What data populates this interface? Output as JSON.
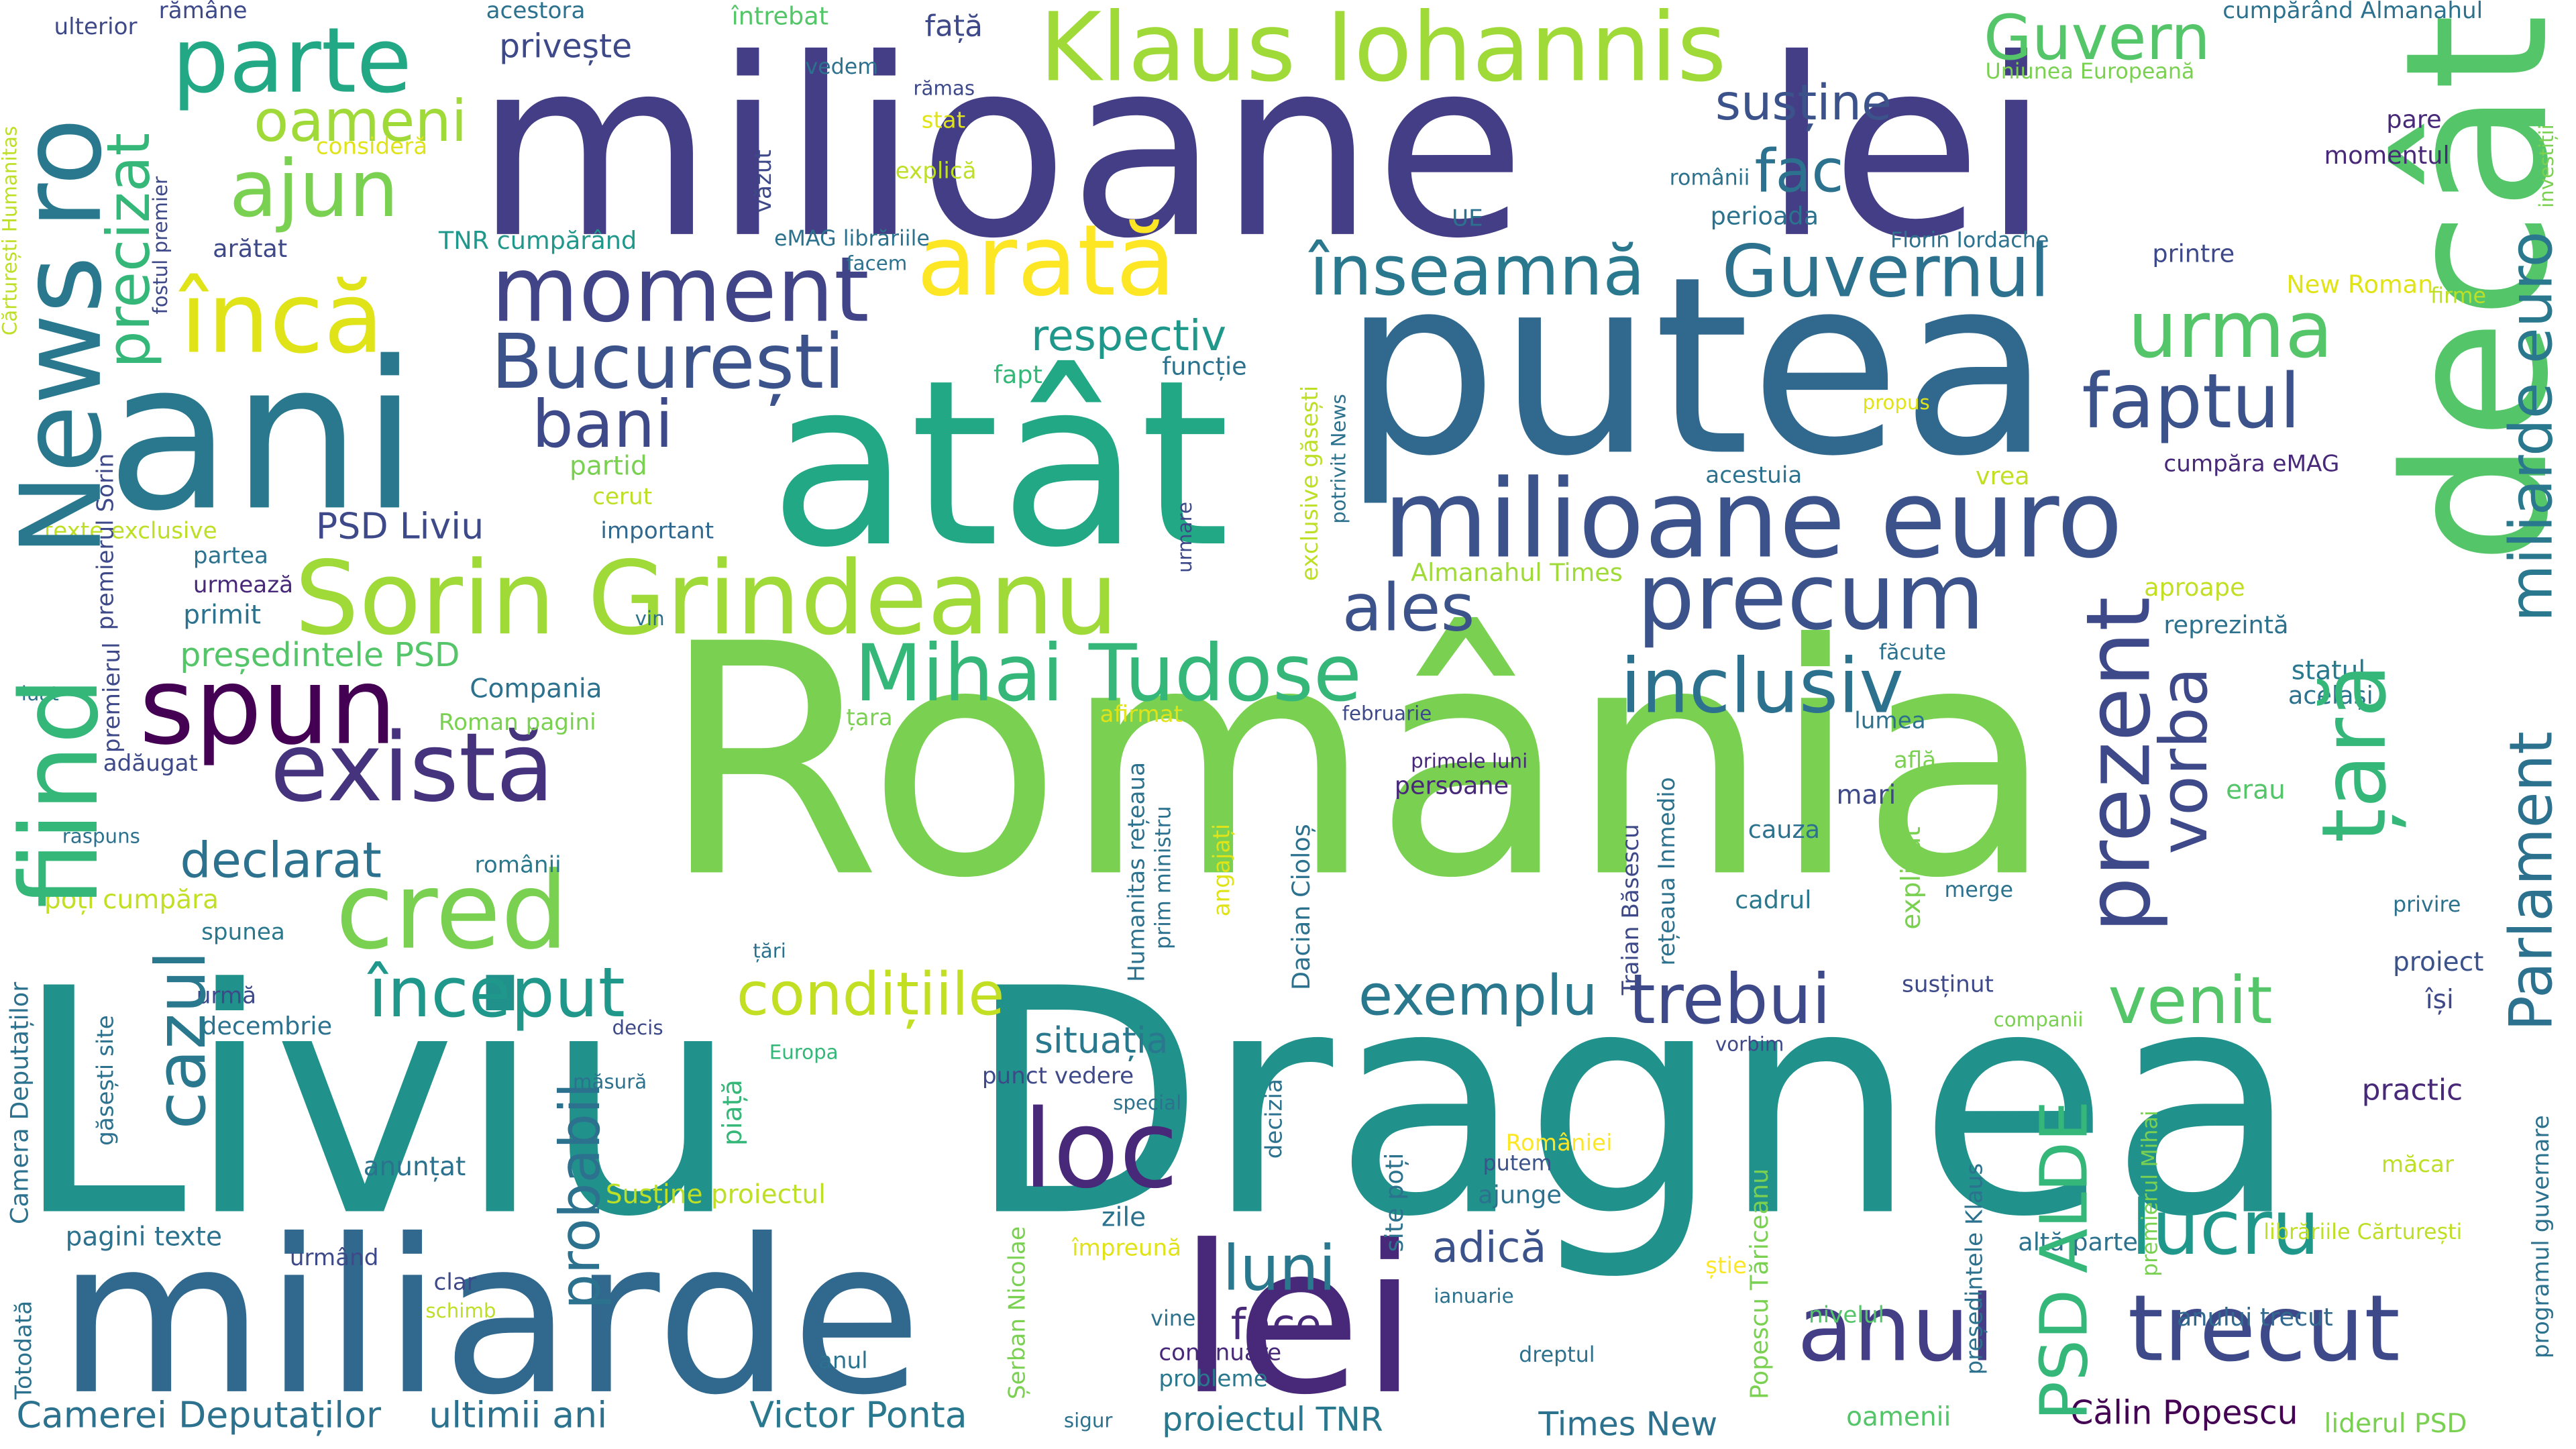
{
  "words": [
    {
      "text": "România",
      "color": "#7ad151"
    },
    {
      "text": "Liviu",
      "color": "#21918c"
    },
    {
      "text": "Dragnea",
      "color": "#21918c"
    },
    {
      "text": "milioane",
      "color": "#433e85"
    },
    {
      "text": "lei",
      "color": "#433e85"
    },
    {
      "text": "putea",
      "color": "#31688e"
    },
    {
      "text": "atât",
      "color": "#22a884"
    },
    {
      "text": "ani",
      "color": "#2a788e"
    },
    {
      "text": "decât",
      "color": "#54c568"
    },
    {
      "text": "miliarde",
      "color": "#31688e"
    },
    {
      "text": "lei",
      "color": "#482878"
    },
    {
      "text": "Klaus Iohannis",
      "color": "#a0da39"
    },
    {
      "text": "Guvern",
      "color": "#54c568"
    },
    {
      "text": "parte",
      "color": "#22a884"
    },
    {
      "text": "oameni",
      "color": "#a0da39"
    },
    {
      "text": "ajun",
      "color": "#7ad151"
    },
    {
      "text": "arată",
      "color": "#fde725"
    },
    {
      "text": "moment",
      "color": "#414487"
    },
    {
      "text": "încă",
      "color": "#dfe318"
    },
    {
      "text": "București",
      "color": "#3b528b"
    },
    {
      "text": "înseamnă",
      "color": "#2a788e"
    },
    {
      "text": "Guvernul",
      "color": "#2c728e"
    },
    {
      "text": "susține",
      "color": "#3b528b"
    },
    {
      "text": "fac",
      "color": "#2c728e"
    },
    {
      "text": "urma",
      "color": "#54c568"
    },
    {
      "text": "faptul",
      "color": "#3b528b"
    },
    {
      "text": "respectiv",
      "color": "#1f988b"
    },
    {
      "text": "bani",
      "color": "#3e4989"
    },
    {
      "text": "milioane euro",
      "color": "#3b528b"
    },
    {
      "text": "Sorin Grindeanu",
      "color": "#a0da39"
    },
    {
      "text": "precum",
      "color": "#3b528b"
    },
    {
      "text": "ales",
      "color": "#3b528b"
    },
    {
      "text": "Mihai Tudose",
      "color": "#35b779"
    },
    {
      "text": "inclusiv",
      "color": "#2c728e"
    },
    {
      "text": "spun",
      "color": "#440154"
    },
    {
      "text": "există",
      "color": "#46337e"
    },
    {
      "text": "cred",
      "color": "#7ad151"
    },
    {
      "text": "declarat",
      "color": "#2c728e"
    },
    {
      "text": "început",
      "color": "#1f988b"
    },
    {
      "text": "condițiile",
      "color": "#c2df23"
    },
    {
      "text": "exemplu",
      "color": "#2a788e"
    },
    {
      "text": "trebui",
      "color": "#3e4989"
    },
    {
      "text": "venit",
      "color": "#54c568"
    },
    {
      "text": "loc",
      "color": "#482878"
    },
    {
      "text": "situația",
      "color": "#2a788e"
    },
    {
      "text": "luni",
      "color": "#2a788e"
    },
    {
      "text": "anul",
      "color": "#433e85"
    },
    {
      "text": "trecut",
      "color": "#3e4989"
    },
    {
      "text": "lucru",
      "color": "#1f988b"
    },
    {
      "text": "adică",
      "color": "#3b528b"
    },
    {
      "text": "face",
      "color": "#482878"
    },
    {
      "text": "Victor Ponta",
      "color": "#2a788e"
    },
    {
      "text": "ultimii ani",
      "color": "#2c728e"
    },
    {
      "text": "Camerei Deputaților",
      "color": "#2c728e"
    },
    {
      "text": "Times New",
      "color": "#2c728e"
    },
    {
      "text": "Călin Popescu",
      "color": "#440154"
    },
    {
      "text": "proiectul TNR",
      "color": "#2a788e"
    },
    {
      "text": "PSD Liviu",
      "color": "#3e4989"
    },
    {
      "text": "partid",
      "color": "#7ad151"
    },
    {
      "text": "cerut",
      "color": "#bddf26"
    },
    {
      "text": "important",
      "color": "#31688e"
    },
    {
      "text": "texte exclusive",
      "color": "#bddf26"
    },
    {
      "text": "partea",
      "color": "#2c728e"
    },
    {
      "text": "urmează",
      "color": "#482878"
    },
    {
      "text": "primit",
      "color": "#2c728e"
    },
    {
      "text": "președintele PSD",
      "color": "#54c568"
    },
    {
      "text": "Compania",
      "color": "#2c728e"
    },
    {
      "text": "Roman pagini",
      "color": "#7ad151"
    },
    {
      "text": "adăugat",
      "color": "#3e4989"
    },
    {
      "text": "românii",
      "color": "#2a788e"
    },
    {
      "text": "poți cumpăra",
      "color": "#c2df23"
    },
    {
      "text": "spunea",
      "color": "#2a788e"
    },
    {
      "text": "urmă",
      "color": "#3e4989"
    },
    {
      "text": "decembrie",
      "color": "#2c728e"
    },
    {
      "text": "anunțat",
      "color": "#2c728e"
    },
    {
      "text": "pagini texte",
      "color": "#2c728e"
    },
    {
      "text": "urmând",
      "color": "#3e4989"
    },
    {
      "text": "clar",
      "color": "#3e4989"
    },
    {
      "text": "schimb",
      "color": "#bddf26"
    },
    {
      "text": "anul",
      "color": "#2c728e"
    },
    {
      "text": "Susține proiectul",
      "color": "#bddf26"
    },
    {
      "text": "zile",
      "color": "#2c728e"
    },
    {
      "text": "împreună",
      "color": "#dfe318"
    },
    {
      "text": "continuare",
      "color": "#482878"
    },
    {
      "text": "probleme",
      "color": "#2a788e"
    },
    {
      "text": "vine",
      "color": "#2c728e"
    },
    {
      "text": "ianuarie",
      "color": "#2c728e"
    },
    {
      "text": "putem",
      "color": "#3b528b"
    },
    {
      "text": "ajunge",
      "color": "#2c728e"
    },
    {
      "text": "dreptul",
      "color": "#2c728e"
    },
    {
      "text": "oamenii",
      "color": "#54c568"
    },
    {
      "text": "sigur",
      "color": "#2c728e"
    },
    {
      "text": "liderul PSD",
      "color": "#7ad151"
    },
    {
      "text": "anului trecut",
      "color": "#31688e"
    },
    {
      "text": "altă parte",
      "color": "#2c728e"
    },
    {
      "text": "nivelul",
      "color": "#54c568"
    },
    {
      "text": "știe",
      "color": "#fde725"
    },
    {
      "text": "librăriile Cărturești",
      "color": "#bddf26"
    },
    {
      "text": "măcar",
      "color": "#bddf26"
    },
    {
      "text": "practic",
      "color": "#482878"
    },
    {
      "text": "companii",
      "color": "#7ad151"
    },
    {
      "text": "susținut",
      "color": "#3e4989"
    },
    {
      "text": "României",
      "color": "#fde725"
    },
    {
      "text": "decis",
      "color": "#3e4989"
    },
    {
      "text": "Europa",
      "color": "#35b779"
    },
    {
      "text": "vorbim",
      "color": "#3e4989"
    },
    {
      "text": "special",
      "color": "#2c728e"
    },
    {
      "text": "punct vedere",
      "color": "#3e4989"
    },
    {
      "text": "afirmat",
      "color": "#dfe318"
    },
    {
      "text": "februarie",
      "color": "#3e4989"
    },
    {
      "text": "țara",
      "color": "#7ad151"
    },
    {
      "text": "lumea",
      "color": "#2c728e"
    },
    {
      "text": "persoane",
      "color": "#482878"
    },
    {
      "text": "primele luni",
      "color": "#482878"
    },
    {
      "text": "mari",
      "color": "#3e4989"
    },
    {
      "text": "află",
      "color": "#7ad151"
    },
    {
      "text": "erau",
      "color": "#54c568"
    },
    {
      "text": "cauza",
      "color": "#2c728e"
    },
    {
      "text": "cadrul",
      "color": "#2a788e"
    },
    {
      "text": "merge",
      "color": "#2c728e"
    },
    {
      "text": "privire",
      "color": "#2c728e"
    },
    {
      "text": "proiect",
      "color": "#3b528b"
    },
    {
      "text": "își",
      "color": "#3e4989"
    },
    {
      "text": "statul",
      "color": "#2a788e"
    },
    {
      "text": "același",
      "color": "#2c728e"
    },
    {
      "text": "reprezintă",
      "color": "#2c728e"
    },
    {
      "text": "aproape",
      "color": "#c2df23"
    },
    {
      "text": "făcute",
      "color": "#2c728e"
    },
    {
      "text": "Almanahul Times",
      "color": "#a0da39"
    },
    {
      "text": "acestuia",
      "color": "#2c728e"
    },
    {
      "text": "vrea",
      "color": "#c2df23"
    },
    {
      "text": "cumpăra eMAG",
      "color": "#482878"
    },
    {
      "text": "propus",
      "color": "#dfe318"
    },
    {
      "text": "firme",
      "color": "#bddf26"
    },
    {
      "text": "New Roman",
      "color": "#dfe318"
    },
    {
      "text": "printre",
      "color": "#3e4989"
    },
    {
      "text": "Florin Iordache",
      "color": "#2c728e"
    },
    {
      "text": "perioada",
      "color": "#2c728e"
    },
    {
      "text": "românii",
      "color": "#2c728e"
    },
    {
      "text": "momentul",
      "color": "#482878"
    },
    {
      "text": "pare",
      "color": "#482878"
    },
    {
      "text": "cumpărând Almanahul",
      "color": "#2c728e"
    },
    {
      "text": "Uniunea Europeană",
      "color": "#7ad151"
    },
    {
      "text": "UE",
      "color": "#2c728e"
    },
    {
      "text": "eMAG librăriile",
      "color": "#2c728e"
    },
    {
      "text": "facem",
      "color": "#2c728e"
    },
    {
      "text": "explică",
      "color": "#bddf26"
    },
    {
      "text": "rămas",
      "color": "#3e4989"
    },
    {
      "text": "stat",
      "color": "#dfe318"
    },
    {
      "text": "vedem",
      "color": "#2c728e"
    },
    {
      "text": "întrebat",
      "color": "#54c568"
    },
    {
      "text": "față",
      "color": "#3e4989"
    },
    {
      "text": "privește",
      "color": "#3e4989"
    },
    {
      "text": "acestora",
      "color": "#2c728e"
    },
    {
      "text": "rămâne",
      "color": "#3e4989"
    },
    {
      "text": "ulterior",
      "color": "#3e4989"
    },
    {
      "text": "consideră",
      "color": "#dfe318"
    },
    {
      "text": "arătat",
      "color": "#3e4989"
    },
    {
      "text": "TNR cumpărând",
      "color": "#1f988b"
    },
    {
      "text": "fapt",
      "color": "#35b779"
    },
    {
      "text": "funcție",
      "color": "#2c728e"
    },
    {
      "text": "vin",
      "color": "#2c728e"
    },
    {
      "text": "luat",
      "color": "#2c728e"
    },
    {
      "text": "răspuns",
      "color": "#2c728e"
    },
    {
      "text": "măsură",
      "color": "#2c728e"
    },
    {
      "text": "țări",
      "color": "#2c728e"
    },
    {
      "text": "decizia",
      "color": "#2c728e"
    },
    {
      "text": "Totodată",
      "color": "#2c728e"
    },
    {
      "text": "News",
      "color": "#2a788e"
    },
    {
      "text": "ro",
      "color": "#2a788e"
    },
    {
      "text": "precizat",
      "color": "#35b779"
    },
    {
      "text": "fiind",
      "color": "#35b779"
    },
    {
      "text": "cazul",
      "color": "#2a788e"
    },
    {
      "text": "țară",
      "color": "#35b779"
    },
    {
      "text": "Parlament",
      "color": "#2c728e"
    },
    {
      "text": "miliarde euro",
      "color": "#2a788e"
    },
    {
      "text": "prezent",
      "color": "#3e4989"
    },
    {
      "text": "vorba",
      "color": "#3e4989"
    },
    {
      "text": "PSD",
      "color": "#35b779"
    },
    {
      "text": "ALDE",
      "color": "#35b779"
    },
    {
      "text": "probabil",
      "color": "#2c728e"
    },
    {
      "text": "Cărturești Humanitas",
      "color": "#bddf26"
    },
    {
      "text": "fostul premier",
      "color": "#3e4989"
    },
    {
      "text": "văzut",
      "color": "#3e4989"
    },
    {
      "text": "exclusive găsești",
      "color": "#bddf26"
    },
    {
      "text": "potrivit News",
      "color": "#2c728e"
    },
    {
      "text": "urmare",
      "color": "#3e4989"
    },
    {
      "text": "premierul Sorin",
      "color": "#3e4989"
    },
    {
      "text": "premierul",
      "color": "#3e4989"
    },
    {
      "text": "Camera Deputaților",
      "color": "#2c728e"
    },
    {
      "text": "găsești site",
      "color": "#2c728e"
    },
    {
      "text": "piață",
      "color": "#35b779"
    },
    {
      "text": "Humanitas rețeaua",
      "color": "#2c728e"
    },
    {
      "text": "prim ministru",
      "color": "#2c728e"
    },
    {
      "text": "angajați",
      "color": "#dfe318"
    },
    {
      "text": "explicat",
      "color": "#7ad151"
    },
    {
      "text": "Dacian Cioloș",
      "color": "#2c728e"
    },
    {
      "text": "Traian Băsescu",
      "color": "#3e4989"
    },
    {
      "text": "rețeaua Inmedio",
      "color": "#2c728e"
    },
    {
      "text": "site poți",
      "color": "#2c728e"
    },
    {
      "text": "Șerban Nicolae",
      "color": "#7ad151"
    },
    {
      "text": "Popescu Tăriceanu",
      "color": "#7ad151"
    },
    {
      "text": "președintele Klaus",
      "color": "#2c728e"
    },
    {
      "text": "programul guvernare",
      "color": "#2c728e"
    },
    {
      "text": "premierul Mihai",
      "color": "#7ad151"
    },
    {
      "text": "investiții",
      "color": "#7ad151"
    }
  ]
}
